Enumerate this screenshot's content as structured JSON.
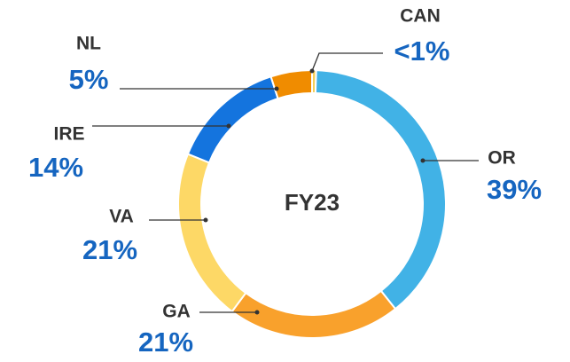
{
  "chart_data": {
    "type": "donut",
    "center_label": "FY23",
    "categories": [
      "CAN",
      "OR",
      "GA",
      "VA",
      "IRE",
      "NL"
    ],
    "values": [
      0.5,
      39,
      21,
      21,
      14,
      5
    ],
    "value_labels": [
      "<1%",
      "39%",
      "21%",
      "21%",
      "14%",
      "5%"
    ],
    "colors": [
      "#f4cf5a",
      "#41b2e6",
      "#f9a12c",
      "#fdd866",
      "#1474de",
      "#f08c00"
    ]
  }
}
